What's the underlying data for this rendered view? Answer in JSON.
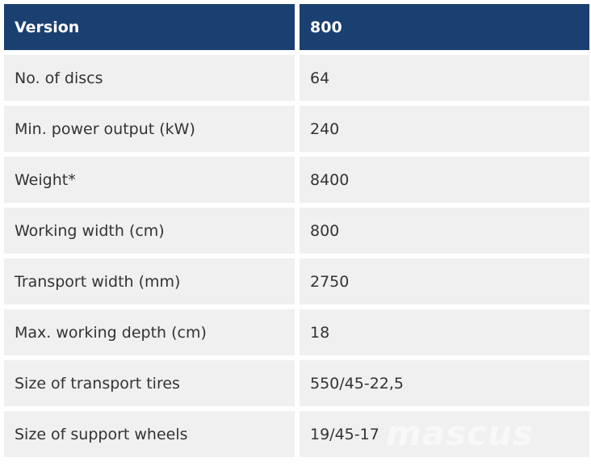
{
  "table": {
    "header": [
      "Version",
      "800"
    ],
    "rows": [
      [
        "No. of discs",
        "64"
      ],
      [
        "Min. power output (kW)",
        "240"
      ],
      [
        "Weight*",
        "8400"
      ],
      [
        "Working width (cm)",
        "800"
      ],
      [
        "Transport width (mm)",
        "2750"
      ],
      [
        "Max. working depth (cm)",
        "18"
      ],
      [
        "Size of transport tires",
        "550/45-22,5"
      ],
      [
        "Size of support wheels",
        "19/45-17"
      ]
    ]
  },
  "watermark": "mascus"
}
